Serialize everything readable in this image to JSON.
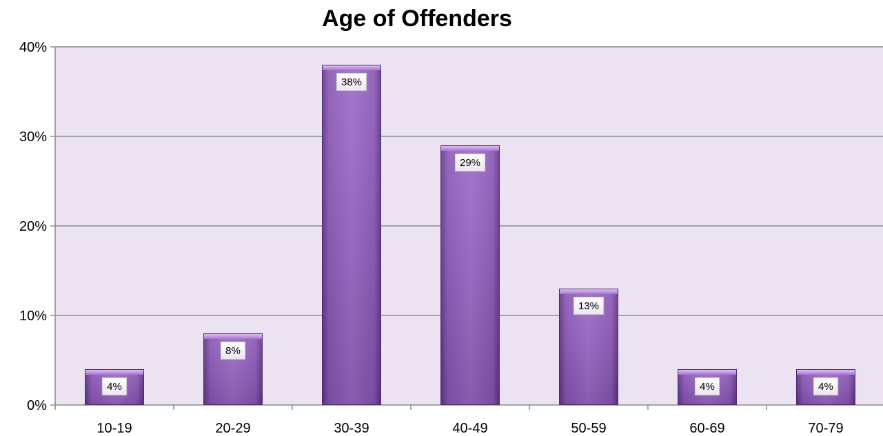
{
  "chart_data": {
    "type": "bar",
    "title": "Age of Offenders",
    "xlabel": "",
    "ylabel": "",
    "categories": [
      "10-19",
      "20-29",
      "30-39",
      "40-49",
      "50-59",
      "60-69",
      "70-79"
    ],
    "values": [
      4,
      8,
      38,
      29,
      13,
      4,
      4
    ],
    "data_labels": [
      "4%",
      "8%",
      "38%",
      "29%",
      "13%",
      "4%",
      "4%"
    ],
    "y_ticks": [
      0,
      10,
      20,
      30,
      40
    ],
    "y_tick_labels": [
      "0%",
      "10%",
      "20%",
      "30%",
      "40%"
    ],
    "ylim": [
      0,
      40
    ],
    "grid": true,
    "legend": "none",
    "colors": {
      "plot_background": "#ebe3f1",
      "bar_fill": "#8d5bb8",
      "bar_top": "#c79be6",
      "gridline": "#8a8a8a"
    }
  }
}
